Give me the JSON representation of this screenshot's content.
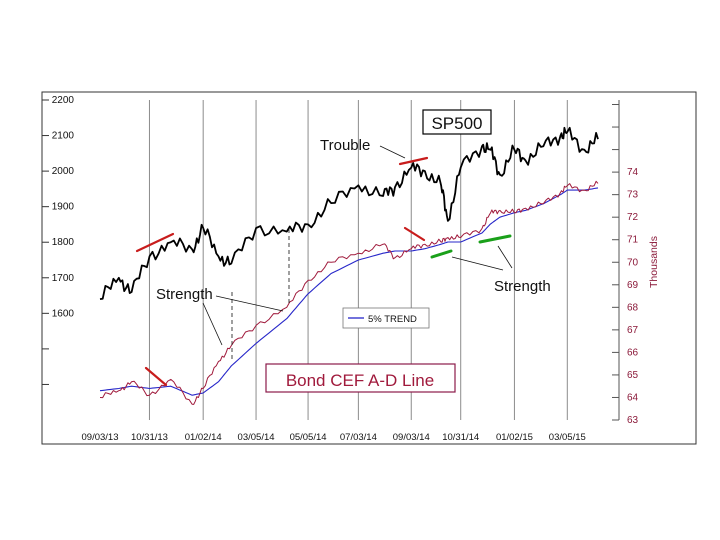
{
  "chart_data": {
    "type": "line",
    "title": "SP500",
    "subtitle": "Bond CEF A-D Line",
    "y2label": "Thousands",
    "legend": "5% TREND",
    "legend_placement": "center",
    "grid": "vertical",
    "x_ticks": [
      "09/03/13",
      "10/31/13",
      "01/02/14",
      "03/05/14",
      "05/05/14",
      "07/03/14",
      "09/03/14",
      "10/31/14",
      "01/02/15",
      "03/05/15"
    ],
    "y_ticks": [
      1600,
      1700,
      1800,
      1900,
      2000,
      2100,
      2200
    ],
    "ylim": [
      1300,
      2200
    ],
    "y2_ticks": [
      63,
      64,
      65,
      66,
      67,
      68,
      69,
      70,
      71,
      72,
      73,
      74
    ],
    "y2lim": [
      63,
      77.2
    ],
    "x": [
      "2013-09-03",
      "2013-09-25",
      "2013-10-10",
      "2013-10-31",
      "2013-11-25",
      "2013-12-20",
      "2014-01-02",
      "2014-01-20",
      "2014-02-04",
      "2014-03-05",
      "2014-04-10",
      "2014-05-05",
      "2014-06-01",
      "2014-07-03",
      "2014-08-01",
      "2014-08-15",
      "2014-09-03",
      "2014-09-19",
      "2014-10-08",
      "2014-10-16",
      "2014-10-31",
      "2014-11-25",
      "2014-12-05",
      "2014-12-16",
      "2015-01-02",
      "2015-01-15",
      "2015-02-05",
      "2015-02-25",
      "2015-03-05",
      "2015-03-25",
      "2015-04-10"
    ],
    "series": [
      {
        "name": "SP500",
        "color": "#000000",
        "axis": "left",
        "values": [
          1640,
          1700,
          1660,
          1760,
          1800,
          1780,
          1840,
          1760,
          1740,
          1840,
          1830,
          1850,
          1910,
          1960,
          1930,
          1955,
          2010,
          2000,
          1960,
          1860,
          2010,
          2070,
          2060,
          1990,
          2060,
          2030,
          2070,
          2100,
          2110,
          2060,
          2090
        ]
      },
      {
        "name": "Bond CEF A-D Line",
        "color": "#a01a3c",
        "axis": "right",
        "values": [
          64.0,
          64.3,
          64.7,
          64.1,
          64.8,
          63.7,
          64.4,
          65.6,
          66.3,
          67.2,
          68.0,
          69.2,
          70.0,
          70.4,
          70.8,
          70.2,
          70.6,
          70.8,
          70.9,
          71.1,
          71.1,
          71.5,
          72.2,
          72.3,
          72.2,
          72.4,
          72.6,
          73.1,
          73.4,
          73.2,
          73.5
        ]
      },
      {
        "name": "5% TREND",
        "color": "#2727c9",
        "axis": "right",
        "values": [
          64.3,
          64.4,
          64.5,
          64.4,
          64.5,
          64.1,
          64.2,
          64.7,
          65.4,
          66.4,
          67.5,
          68.6,
          69.5,
          70.1,
          70.4,
          70.5,
          70.5,
          70.6,
          70.8,
          70.9,
          70.9,
          71.3,
          71.7,
          72.0,
          72.2,
          72.3,
          72.6,
          73.0,
          73.2,
          73.2,
          73.3
        ]
      }
    ],
    "annotations": [
      "Trouble",
      "Strength",
      "Strength"
    ],
    "colors": {
      "sp500": "#000000",
      "adline": "#a01a3c",
      "trend": "#2727c9",
      "trouble": "#c81c1c",
      "strength": "#1aa01a",
      "title_border": "#000000",
      "subtitle_border": "#8b1a4a",
      "subtitle_text": "#a01a3c"
    }
  }
}
